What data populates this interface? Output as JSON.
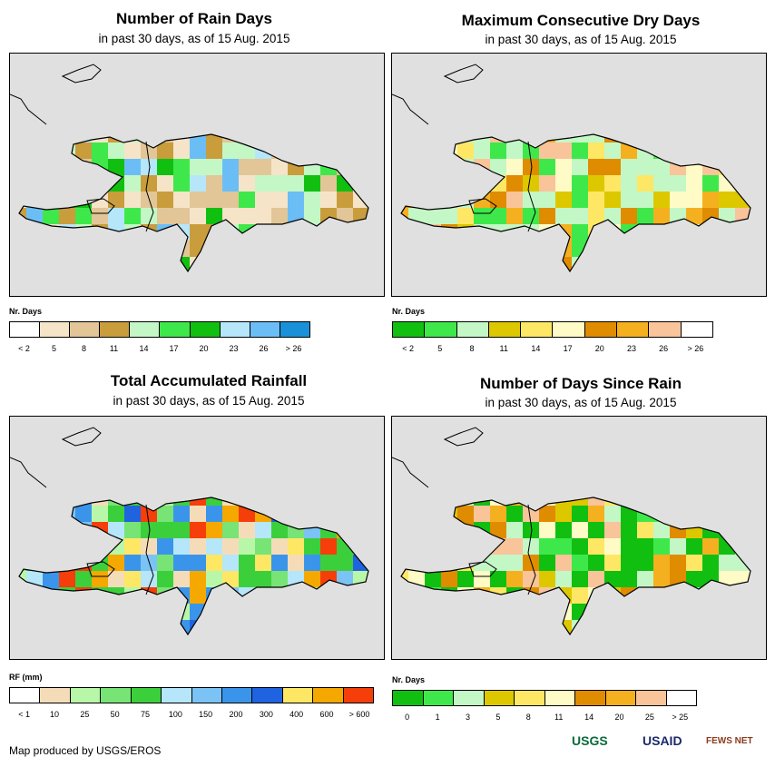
{
  "panels": [
    {
      "id": "rain-days",
      "title": "Number of Rain Days",
      "subtitle": "in past 30 days, as of 15 Aug. 2015",
      "legend_title": "Nr. Days",
      "legend_colors": [
        "#ffffff",
        "#f5e4c8",
        "#e2c697",
        "#c99d3c",
        "#c4f7c6",
        "#3fe84a",
        "#11bf11",
        "#b5e6fa",
        "#6bbef5",
        "#1a90d8"
      ],
      "legend_ticks": [
        "< 2",
        "5",
        "8",
        "11",
        "14",
        "17",
        "20",
        "23",
        "26",
        "> 26"
      ]
    },
    {
      "id": "dry-days",
      "title": "Maximum Consecutive Dry Days",
      "subtitle": "in past 30 days, as of 15 Aug. 2015",
      "legend_title": "Nr. Days",
      "legend_colors": [
        "#11bf11",
        "#3fe84a",
        "#c4f7c6",
        "#ddc800",
        "#fde764",
        "#fffbc6",
        "#e08c00",
        "#f5b020",
        "#f9c49a",
        "#ffffff"
      ],
      "legend_ticks": [
        "< 2",
        "5",
        "8",
        "11",
        "14",
        "17",
        "20",
        "23",
        "26",
        "> 26"
      ]
    },
    {
      "id": "rainfall",
      "title": "Total Accumulated Rainfall",
      "subtitle": "in past 30 days, as of 15 Aug. 2015",
      "legend_title": "RF (mm)",
      "legend_colors": [
        "#ffffff",
        "#f5dcb8",
        "#b9f7a8",
        "#77e475",
        "#3ccf3c",
        "#b5e6fa",
        "#7cc3f5",
        "#3a95ea",
        "#1f63e0",
        "#fde764",
        "#f5a800",
        "#f53e0a"
      ],
      "legend_ticks": [
        "< 1",
        "10",
        "25",
        "50",
        "75",
        "100",
        "150",
        "200",
        "300",
        "400",
        "600",
        "> 600"
      ]
    },
    {
      "id": "since-rain",
      "title": "Number of Days Since Rain",
      "subtitle": "in past 30 days, as of 15 Aug. 2015",
      "legend_title": "Nr. Days",
      "legend_colors": [
        "#11bf11",
        "#3fe84a",
        "#c4f7c6",
        "#ddc800",
        "#fde764",
        "#fffbc6",
        "#e08c00",
        "#f5b020",
        "#f9c49a",
        "#ffffff"
      ],
      "legend_ticks": [
        "0",
        "1",
        "3",
        "5",
        "8",
        "11",
        "14",
        "20",
        "25",
        "> 25"
      ]
    }
  ],
  "footer": "Map produced by USGS/EROS",
  "logos": {
    "usgs": "USGS",
    "usaid": "USAID",
    "fews": "FEWS NET"
  }
}
